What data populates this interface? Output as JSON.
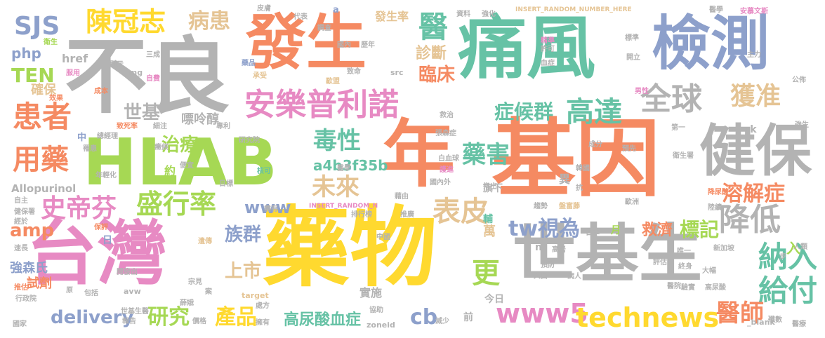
{
  "palette": {
    "orange": "#F58A62",
    "green": "#66C2A5",
    "blue": "#8DA0CB",
    "pink": "#E78AC3",
    "lime": "#A6D854",
    "yellow": "#FFD92F",
    "tan": "#E5C494",
    "gray": "#B3B3B3"
  },
  "words": [
    {
      "text": "不良",
      "color": "#B3B3B3"
    },
    {
      "text": "發生",
      "color": "#F58A62"
    },
    {
      "text": "痛風",
      "color": "#66C2A5"
    },
    {
      "text": "檢測",
      "color": "#8DA0CB"
    },
    {
      "text": "HLAB",
      "color": "#A6D854"
    },
    {
      "text": "年",
      "color": "#F58A62"
    },
    {
      "text": "基因",
      "color": "#F58A62"
    },
    {
      "text": "健保",
      "color": "#B3B3B3"
    },
    {
      "text": "台灣",
      "color": "#E78AC3"
    },
    {
      "text": "藥物",
      "color": "#FFD92F"
    },
    {
      "text": "世基生",
      "color": "#B3B3B3"
    },
    {
      "text": "安樂普利諾",
      "color": "#E78AC3"
    },
    {
      "text": "陳冠志",
      "color": "#FFD92F"
    },
    {
      "text": "病患",
      "color": "#E5C494"
    },
    {
      "text": "SJS",
      "color": "#8DA0CB"
    },
    {
      "text": "患者",
      "color": "#F58A62"
    },
    {
      "text": "TEN",
      "color": "#A6D854"
    },
    {
      "text": "php",
      "color": "#8DA0CB"
    },
    {
      "text": "醫",
      "color": "#66C2A5"
    },
    {
      "text": "診斷",
      "color": "#E5C494"
    },
    {
      "text": "臨床",
      "color": "#F58A62"
    },
    {
      "text": "全球",
      "color": "#B3B3B3"
    },
    {
      "text": "高達",
      "color": "#66C2A5"
    },
    {
      "text": "症候群",
      "color": "#66C2A5"
    },
    {
      "text": "獲准",
      "color": "#E5C494"
    },
    {
      "text": "用藥",
      "color": "#F58A62"
    },
    {
      "text": "史帝芬",
      "color": "#E78AC3"
    },
    {
      "text": "盛行率",
      "color": "#A6D854"
    },
    {
      "text": "毒性",
      "color": "#66C2A5"
    },
    {
      "text": "未來",
      "color": "#E5C494"
    },
    {
      "text": "藥害",
      "color": "#66C2A5"
    },
    {
      "text": "溶解症",
      "color": "#F58A62"
    },
    {
      "text": "降低",
      "color": "#B3B3B3"
    },
    {
      "text": "表皮",
      "color": "#E5C494"
    },
    {
      "text": "tw視為",
      "color": "#8DA0CB"
    },
    {
      "text": "標記",
      "color": "#A6D854"
    },
    {
      "text": "救濟",
      "color": "#F58A62"
    },
    {
      "text": "納入",
      "color": "#66C2A5"
    },
    {
      "text": "給付",
      "color": "#66C2A5"
    },
    {
      "text": "更",
      "color": "#A6D854"
    },
    {
      "text": "www5",
      "color": "#E78AC3"
    },
    {
      "text": "technews",
      "color": "#FFD92F"
    },
    {
      "text": "醫師",
      "color": "#F58A62"
    },
    {
      "text": "研究",
      "color": "#A6D854"
    },
    {
      "text": "產品",
      "color": "#FFD92F"
    },
    {
      "text": "delivery",
      "color": "#8DA0CB"
    },
    {
      "text": "高尿酸血症",
      "color": "#66C2A5"
    },
    {
      "text": "cb",
      "color": "#8DA0CB"
    },
    {
      "text": "族群",
      "color": "#8DA0CB"
    },
    {
      "text": "上市",
      "color": "#E5C494"
    },
    {
      "text": "www",
      "color": "#8DA0CB"
    },
    {
      "text": "amp",
      "color": "#F58A62"
    },
    {
      "text": "治療",
      "color": "#A6D854"
    },
    {
      "text": "世基",
      "color": "#B3B3B3"
    },
    {
      "text": "a4b3f35b",
      "color": "#66C2A5"
    },
    {
      "text": "Allopurinol",
      "color": "#B3B3B3"
    },
    {
      "text": "強森氏",
      "color": "#8DA0CB"
    },
    {
      "text": "試劑",
      "color": "#F58A62"
    },
    {
      "text": "確保",
      "color": "#E5C494"
    },
    {
      "text": "嘌呤醇",
      "color": "#B3B3B3"
    },
    {
      "text": "發生率",
      "color": "#E5C494"
    },
    {
      "text": "href",
      "color": "#B3B3B3"
    },
    {
      "text": "萬",
      "color": "#E5C494"
    },
    {
      "text": "輔",
      "color": "#66C2A5"
    },
    {
      "text": "旗下",
      "color": "#B3B3B3"
    },
    {
      "text": "實施",
      "color": "#B3B3B3"
    },
    {
      "text": "今日",
      "color": "#B3B3B3"
    },
    {
      "text": "前",
      "color": "#B3B3B3"
    },
    {
      "text": "異",
      "color": "#B3B3B3"
    },
    {
      "text": "約",
      "color": "#A6D854"
    },
    {
      "text": "ck",
      "color": "#B3B3B3"
    },
    {
      "text": "月",
      "color": "#A6D854"
    },
    {
      "text": "日",
      "color": "#8DA0CB"
    },
    {
      "text": "中",
      "color": "#8DA0CB"
    },
    {
      "text": "a",
      "color": "#8DA0CB"
    },
    {
      "text": "n",
      "color": "#B3B3B3"
    },
    {
      "text": "入",
      "color": "#A6D854"
    },
    {
      "text": "INSERT_RANDOM_NUMBER_HERE",
      "color": "#E5C494"
    },
    {
      "text": "INSERT_RANDOM_N",
      "color": "#E78AC3"
    },
    {
      "text": "img",
      "color": "#B3B3B3"
    },
    {
      "text": "src",
      "color": "#B3B3B3"
    },
    {
      "text": "target",
      "color": "#E5C494"
    },
    {
      "text": "zoneid",
      "color": "#B3B3B3"
    },
    {
      "text": "avw",
      "color": "#B3B3B3"
    },
    {
      "text": "_blank",
      "color": "#B3B3B3"
    },
    {
      "text": "安慕文斯",
      "color": "#E78AC3"
    },
    {
      "text": "皮膚",
      "color": "#B3B3B3"
    },
    {
      "text": "代表",
      "color": "#B3B3B3"
    },
    {
      "text": "調查",
      "color": "#B3B3B3"
    },
    {
      "text": "國內",
      "color": "#B3B3B3"
    },
    {
      "text": "歷年",
      "color": "#B3B3B3"
    },
    {
      "text": "資料",
      "color": "#B3B3B3"
    },
    {
      "text": "強化",
      "color": "#B3B3B3"
    },
    {
      "text": "醫學",
      "color": "#B3B3B3"
    },
    {
      "text": "衛生",
      "color": "#A6D854"
    },
    {
      "text": "服用",
      "color": "#E78AC3"
    },
    {
      "text": "三成",
      "color": "#B3B3B3"
    },
    {
      "text": "顯示",
      "color": "#B3B3B3"
    },
    {
      "text": "自費",
      "color": "#E78AC3"
    },
    {
      "text": "成本",
      "color": "#F58A62"
    },
    {
      "text": "效果",
      "color": "#F58A62"
    },
    {
      "text": "致命",
      "color": "#B3B3B3"
    },
    {
      "text": "藥品",
      "color": "#8DA0CB"
    },
    {
      "text": "承受",
      "color": "#E5C494"
    },
    {
      "text": "歐盟",
      "color": "#E5C494"
    },
    {
      "text": "精準",
      "color": "#E78AC3"
    },
    {
      "text": "許可",
      "color": "#B3B3B3"
    },
    {
      "text": "標準",
      "color": "#B3B3B3"
    },
    {
      "text": "開立",
      "color": "#B3B3B3"
    },
    {
      "text": "主力",
      "color": "#B3B3B3"
    },
    {
      "text": "血症",
      "color": "#B3B3B3"
    },
    {
      "text": "男性",
      "color": "#E78AC3"
    },
    {
      "text": "第一",
      "color": "#B3B3B3"
    },
    {
      "text": "衛生署",
      "color": "#B3B3B3"
    },
    {
      "text": "強生",
      "color": "#B3B3B3"
    },
    {
      "text": "公佈",
      "color": "#B3B3B3"
    },
    {
      "text": "救治",
      "color": "#B3B3B3"
    },
    {
      "text": "張森症",
      "color": "#B3B3B3"
    },
    {
      "text": "總經理",
      "color": "#B3B3B3"
    },
    {
      "text": "致死率",
      "color": "#F58A62"
    },
    {
      "text": "細注",
      "color": "#B3B3B3"
    },
    {
      "text": "專利",
      "color": "#B3B3B3"
    },
    {
      "text": "預先",
      "color": "#B3B3B3"
    },
    {
      "text": "成分",
      "color": "#B3B3B3"
    },
    {
      "text": "癥候",
      "color": "#B3B3B3"
    },
    {
      "text": "研究院",
      "color": "#B3B3B3"
    },
    {
      "text": "白血球",
      "color": "#B3B3B3"
    },
    {
      "text": "罹患",
      "color": "#B3B3B3"
    },
    {
      "text": "便宜",
      "color": "#B3B3B3"
    },
    {
      "text": "核可",
      "color": "#66C2A5"
    },
    {
      "text": "護進",
      "color": "#E78AC3"
    },
    {
      "text": "韓國",
      "color": "#B3B3B3"
    },
    {
      "text": "年輕化",
      "color": "#B3B3B3"
    },
    {
      "text": "醫學",
      "color": "#B3B3B3"
    },
    {
      "text": "國內外",
      "color": "#B3B3B3"
    },
    {
      "text": "降尿酸",
      "color": "#F58A62"
    },
    {
      "text": "目標",
      "color": "#B3B3B3"
    },
    {
      "text": "藉由",
      "color": "#B3B3B3"
    },
    {
      "text": "指出",
      "color": "#B3B3B3"
    },
    {
      "text": "抗",
      "color": "#B3B3B3"
    },
    {
      "text": "自主",
      "color": "#B3B3B3"
    },
    {
      "text": "需有",
      "color": "#B3B3B3"
    },
    {
      "text": "趨勢",
      "color": "#B3B3B3"
    },
    {
      "text": "盤富藤",
      "color": "#E5C494"
    },
    {
      "text": "歐洲",
      "color": "#B3B3B3"
    },
    {
      "text": "陸續",
      "color": "#B3B3B3"
    },
    {
      "text": "健保署",
      "color": "#B3B3B3"
    },
    {
      "text": "排行榜",
      "color": "#B3B3B3"
    },
    {
      "text": "推廣",
      "color": "#B3B3B3"
    },
    {
      "text": "經於",
      "color": "#B3B3B3"
    },
    {
      "text": "保評",
      "color": "#F58A62"
    },
    {
      "text": "中國",
      "color": "#B3B3B3"
    },
    {
      "text": "日本",
      "color": "#B3B3B3"
    },
    {
      "text": "遺傳",
      "color": "#E5C494"
    },
    {
      "text": "高居",
      "color": "#B3B3B3"
    },
    {
      "text": "新加坡",
      "color": "#B3B3B3"
    },
    {
      "text": "人類",
      "color": "#B3B3B3"
    },
    {
      "text": "速長",
      "color": "#B3B3B3"
    },
    {
      "text": "唯一",
      "color": "#B3B3B3"
    },
    {
      "text": "評估",
      "color": "#B3B3B3"
    },
    {
      "text": "步",
      "color": "#B3B3B3"
    },
    {
      "text": "推估",
      "color": "#F58A62"
    },
    {
      "text": "開發出",
      "color": "#B3B3B3"
    },
    {
      "text": "宗見",
      "color": "#B3B3B3"
    },
    {
      "text": "預防",
      "color": "#B3B3B3"
    },
    {
      "text": "終身",
      "color": "#B3B3B3"
    },
    {
      "text": "大幅",
      "color": "#B3B3B3"
    },
    {
      "text": "人口",
      "color": "#B3B3B3"
    },
    {
      "text": "病人",
      "color": "#B3B3B3"
    },
    {
      "text": "醫院",
      "color": "#B3B3B3"
    },
    {
      "text": "行政院",
      "color": "#B3B3B3"
    },
    {
      "text": "包括",
      "color": "#B3B3B3"
    },
    {
      "text": "原",
      "color": "#B3B3B3"
    },
    {
      "text": "案",
      "color": "#B3B3B3"
    },
    {
      "text": "驗實",
      "color": "#B3B3B3"
    },
    {
      "text": "高尿酸",
      "color": "#B3B3B3"
    },
    {
      "text": "國家",
      "color": "#B3B3B3"
    },
    {
      "text": "報告",
      "color": "#B3B3B3"
    },
    {
      "text": "世基生醫",
      "color": "#B3B3B3"
    },
    {
      "text": "價格",
      "color": "#B3B3B3"
    },
    {
      "text": "處方",
      "color": "#B3B3B3"
    },
    {
      "text": "協助",
      "color": "#B3B3B3"
    },
    {
      "text": "擁有",
      "color": "#B3B3B3"
    },
    {
      "text": "減少",
      "color": "#B3B3B3"
    },
    {
      "text": "殲數",
      "color": "#B3B3B3"
    },
    {
      "text": "醫療",
      "color": "#B3B3B3"
    },
    {
      "text": "薛娥",
      "color": "#B3B3B3"
    }
  ]
}
